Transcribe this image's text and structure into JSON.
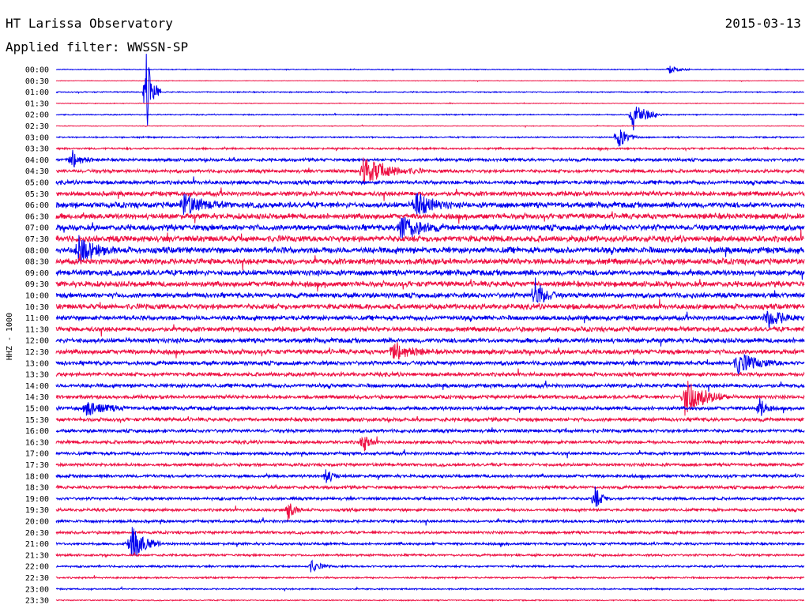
{
  "header": {
    "title": "HT Larissa Observatory",
    "date": "2015-03-13",
    "filter": "Applied filter: WWSSN-SP"
  },
  "chart_data": {
    "type": "line",
    "title": "HT Larissa Observatory",
    "subtitle": "Applied filter: WWSSN-SP",
    "ylabel": "HHZ - 1000",
    "xlabel": "",
    "time_labels": [
      "00:00",
      "00:30",
      "01:00",
      "01:30",
      "02:00",
      "02:30",
      "03:00",
      "03:30",
      "04:00",
      "04:30",
      "05:00",
      "05:30",
      "06:00",
      "06:30",
      "07:00",
      "07:30",
      "08:00",
      "08:30",
      "09:00",
      "09:30",
      "10:00",
      "10:30",
      "11:00",
      "11:30",
      "12:00",
      "12:30",
      "13:00",
      "13:30",
      "14:00",
      "14:30",
      "15:00",
      "15:30",
      "16:00",
      "16:30",
      "17:00",
      "17:30",
      "18:00",
      "18:30",
      "19:00",
      "19:30",
      "20:00",
      "20:30",
      "21:00",
      "21:30",
      "22:00",
      "22:30",
      "23:00",
      "23:30"
    ],
    "trace_colors": [
      "#0000ee",
      "#ee1144"
    ],
    "base_amplitude": [
      0.6,
      0.4,
      0.8,
      0.5,
      0.8,
      0.5,
      1.0,
      1.4,
      2.2,
      2.4,
      2.8,
      3.4,
      4.0,
      4.0,
      4.2,
      4.4,
      4.4,
      4.2,
      4.0,
      4.0,
      3.6,
      3.8,
      3.4,
      3.4,
      3.4,
      3.4,
      3.0,
      2.8,
      2.8,
      2.6,
      2.6,
      2.6,
      2.4,
      2.4,
      2.2,
      2.2,
      2.2,
      2.2,
      2.0,
      2.0,
      2.0,
      2.0,
      1.8,
      1.6,
      1.4,
      1.2,
      1.0,
      0.8
    ],
    "events": [
      {
        "row": 0,
        "x": 0.82,
        "amp": 6,
        "dur": 0.03
      },
      {
        "row": 2,
        "x": 0.12,
        "amp": 60,
        "dur": 0.02
      },
      {
        "row": 4,
        "x": 0.77,
        "amp": 22,
        "dur": 0.04
      },
      {
        "row": 6,
        "x": 0.75,
        "amp": 16,
        "dur": 0.03
      },
      {
        "row": 8,
        "x": 0.02,
        "amp": 14,
        "dur": 0.03
      },
      {
        "row": 9,
        "x": 0.41,
        "amp": 18,
        "dur": 0.08
      },
      {
        "row": 12,
        "x": 0.17,
        "amp": 14,
        "dur": 0.06
      },
      {
        "row": 12,
        "x": 0.48,
        "amp": 18,
        "dur": 0.05
      },
      {
        "row": 14,
        "x": 0.46,
        "amp": 18,
        "dur": 0.06
      },
      {
        "row": 16,
        "x": 0.03,
        "amp": 18,
        "dur": 0.05
      },
      {
        "row": 20,
        "x": 0.64,
        "amp": 22,
        "dur": 0.03
      },
      {
        "row": 22,
        "x": 0.95,
        "amp": 12,
        "dur": 0.05
      },
      {
        "row": 25,
        "x": 0.45,
        "amp": 14,
        "dur": 0.05
      },
      {
        "row": 26,
        "x": 0.91,
        "amp": 14,
        "dur": 0.06
      },
      {
        "row": 29,
        "x": 0.84,
        "amp": 26,
        "dur": 0.06
      },
      {
        "row": 30,
        "x": 0.04,
        "amp": 10,
        "dur": 0.06
      },
      {
        "row": 30,
        "x": 0.94,
        "amp": 14,
        "dur": 0.02
      },
      {
        "row": 33,
        "x": 0.41,
        "amp": 14,
        "dur": 0.02
      },
      {
        "row": 36,
        "x": 0.36,
        "amp": 12,
        "dur": 0.02
      },
      {
        "row": 38,
        "x": 0.72,
        "amp": 16,
        "dur": 0.02
      },
      {
        "row": 39,
        "x": 0.31,
        "amp": 14,
        "dur": 0.02
      },
      {
        "row": 42,
        "x": 0.1,
        "amp": 26,
        "dur": 0.04
      },
      {
        "row": 44,
        "x": 0.34,
        "amp": 8,
        "dur": 0.03
      }
    ]
  }
}
